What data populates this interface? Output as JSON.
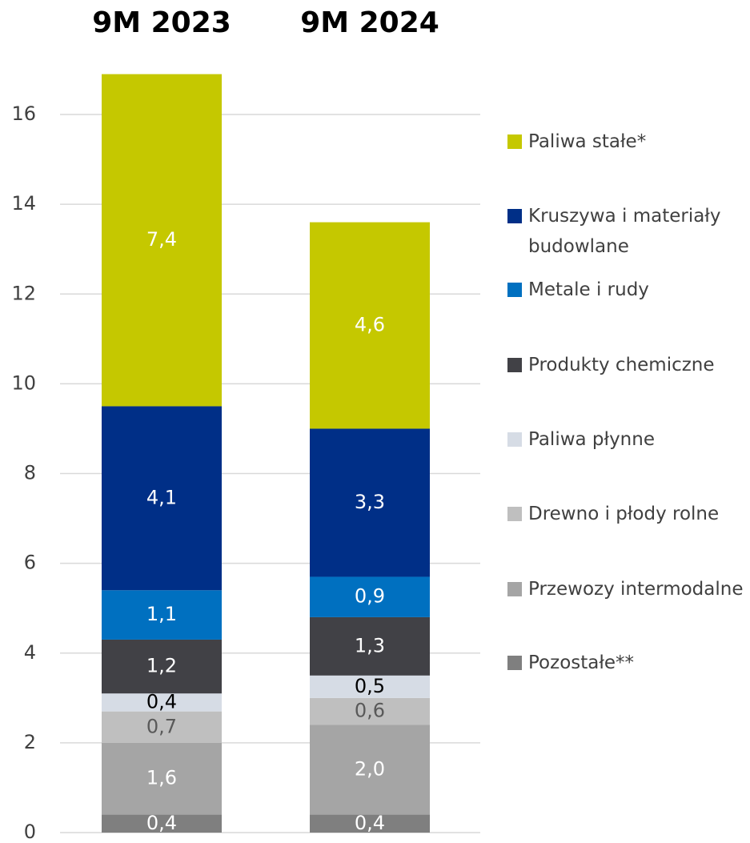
{
  "chart_data": {
    "type": "stacked_bar",
    "categories": [
      "9M 2023",
      "9M 2024"
    ],
    "series": [
      {
        "name": "Pozostałe**",
        "color": "#7f7f7f",
        "label_color": "#ffffff",
        "values": [
          0.4,
          0.4
        ],
        "value_labels": [
          "0,4",
          "0,4"
        ]
      },
      {
        "name": "Przewozy intermodalne",
        "color": "#a5a5a5",
        "label_color": "#ffffff",
        "values": [
          1.6,
          2.0
        ],
        "value_labels": [
          "1,6",
          "2,0"
        ]
      },
      {
        "name": "Drewno i płody rolne",
        "color": "#bfbfbf",
        "label_color": "#595959",
        "values": [
          0.7,
          0.6
        ],
        "value_labels": [
          "0,7",
          "0,6"
        ]
      },
      {
        "name": "Paliwa płynne",
        "color": "#d6dce5",
        "label_color": "#000000",
        "values": [
          0.4,
          0.5
        ],
        "value_labels": [
          "0,4",
          "0,5"
        ]
      },
      {
        "name": "Produkty chemiczne",
        "color": "#414146",
        "label_color": "#ffffff",
        "values": [
          1.2,
          1.3
        ],
        "value_labels": [
          "1,2",
          "1,3"
        ]
      },
      {
        "name": "Metale i rudy",
        "color": "#0070c0",
        "label_color": "#ffffff",
        "values": [
          1.1,
          0.9
        ],
        "value_labels": [
          "1,1",
          "0,9"
        ]
      },
      {
        "name": "Kruszywa i materiały budowlane",
        "color": "#002f87",
        "label_color": "#ffffff",
        "values": [
          4.1,
          3.3
        ],
        "value_labels": [
          "4,1",
          "3,3"
        ]
      },
      {
        "name": "Paliwa stałe*",
        "color": "#c5c800",
        "label_color": "#ffffff",
        "values": [
          7.4,
          4.6
        ],
        "value_labels": [
          "7,4",
          "4,6"
        ]
      }
    ],
    "ylim": [
      0,
      17
    ],
    "yticks": [
      0,
      2,
      4,
      6,
      8,
      10,
      12,
      14,
      16
    ],
    "grid": true,
    "legend": "right"
  }
}
